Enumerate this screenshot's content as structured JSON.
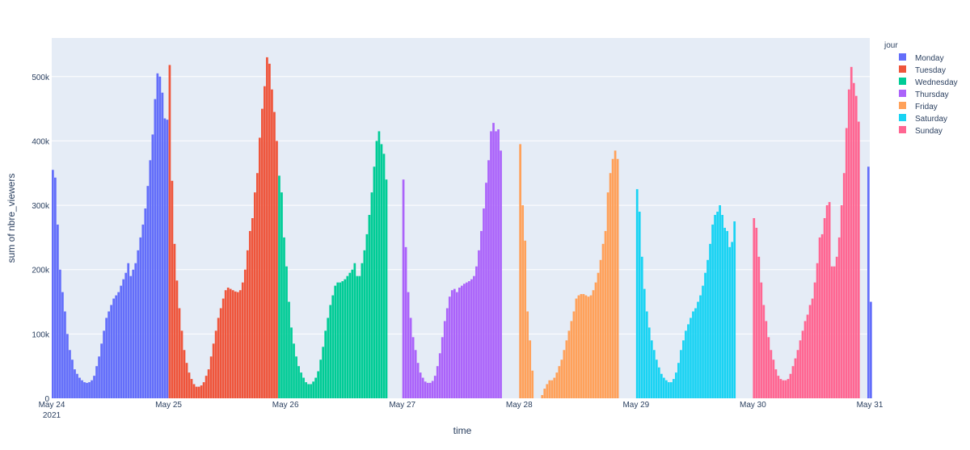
{
  "chart_data": {
    "type": "bar",
    "xlabel": "time",
    "ylabel": "sum of nbre_viewers",
    "ylim": [
      0,
      560000
    ],
    "xlim_hours": [
      0,
      168
    ],
    "x_ticks": [
      {
        "label": "May 24",
        "sub": "2021",
        "hour": 0
      },
      {
        "label": "May 25",
        "sub": "",
        "hour": 24
      },
      {
        "label": "May 26",
        "sub": "",
        "hour": 48
      },
      {
        "label": "May 27",
        "sub": "",
        "hour": 72
      },
      {
        "label": "May 28",
        "sub": "",
        "hour": 96
      },
      {
        "label": "May 29",
        "sub": "",
        "hour": 120
      },
      {
        "label": "May 30",
        "sub": "",
        "hour": 144
      },
      {
        "label": "May 31",
        "sub": "",
        "hour": 168
      }
    ],
    "y_ticks": [
      {
        "label": "0",
        "value": 0
      },
      {
        "label": "100k",
        "value": 100000
      },
      {
        "label": "200k",
        "value": 200000
      },
      {
        "label": "300k",
        "value": 300000
      },
      {
        "label": "400k",
        "value": 400000
      },
      {
        "label": "500k",
        "value": 500000
      }
    ],
    "bin_width_hours": 0.5,
    "legend": {
      "title": "jour",
      "placement": "right"
    },
    "grid": true,
    "series": [
      {
        "name": "Monday",
        "color": "#636efa",
        "start_hour": 0,
        "values": [
          355000,
          343000,
          270000,
          200000,
          165000,
          135000,
          100000,
          75000,
          60000,
          45000,
          38000,
          32000,
          28000,
          25000,
          24000,
          25000,
          28000,
          35000,
          50000,
          65000,
          85000,
          105000,
          125000,
          135000,
          145000,
          155000,
          160000,
          165000,
          175000,
          185000,
          195000,
          210000,
          190000,
          200000,
          210000,
          230000,
          250000,
          270000,
          295000,
          330000,
          370000,
          410000,
          465000,
          505000,
          500000,
          475000,
          435000,
          433000
        ]
      },
      {
        "name": "Tuesday",
        "color": "#ef553b",
        "start_hour": 24,
        "values": [
          518000,
          338000,
          240000,
          183000,
          140000,
          105000,
          75000,
          55000,
          40000,
          30000,
          22000,
          18000,
          18000,
          20000,
          25000,
          35000,
          45000,
          65000,
          85000,
          105000,
          125000,
          140000,
          155000,
          168000,
          172000,
          170000,
          168000,
          166000,
          165000,
          168000,
          180000,
          200000,
          230000,
          260000,
          280000,
          320000,
          350000,
          405000,
          450000,
          485000,
          530000,
          520000,
          480000,
          445000,
          400000
        ]
      },
      {
        "name": "Wednesday",
        "color": "#00cc96",
        "start_hour": 46.5,
        "values": [
          346000,
          320000,
          250000,
          205000,
          150000,
          110000,
          85000,
          65000,
          50000,
          40000,
          32000,
          25000,
          22000,
          22000,
          26000,
          32000,
          42000,
          60000,
          80000,
          105000,
          125000,
          145000,
          160000,
          175000,
          180000,
          180000,
          182000,
          185000,
          190000,
          195000,
          200000,
          210000,
          190000,
          190000,
          210000,
          230000,
          255000,
          285000,
          320000,
          360000,
          400000,
          415000,
          395000,
          380000,
          340000
        ]
      },
      {
        "name": "Thursday",
        "color": "#ab63fa",
        "start_hour": 72,
        "values": [
          340000,
          235000,
          165000,
          125000,
          95000,
          75000,
          55000,
          40000,
          32000,
          26000,
          24000,
          24000,
          27000,
          35000,
          50000,
          70000,
          95000,
          120000,
          140000,
          158000,
          168000,
          170000,
          165000,
          172000,
          175000,
          178000,
          180000,
          182000,
          185000,
          190000,
          205000,
          230000,
          260000,
          295000,
          335000,
          370000,
          415000,
          428000,
          415000,
          418000,
          385000
        ]
      },
      {
        "name": "Friday",
        "color": "#ffa15a",
        "start_hour": 96,
        "values": [
          395000,
          300000,
          245000,
          135000,
          90000,
          43000,
          0,
          0,
          0,
          5000,
          15000,
          22000,
          28000,
          28000,
          32000,
          40000,
          50000,
          60000,
          75000,
          90000,
          105000,
          120000,
          135000,
          155000,
          160000,
          162000,
          162000,
          160000,
          158000,
          160000,
          168000,
          180000,
          195000,
          215000,
          240000,
          260000,
          320000,
          350000,
          372000,
          385000,
          372000
        ]
      },
      {
        "name": "Saturday",
        "color": "#19d3f3",
        "start_hour": 120,
        "values": [
          325000,
          290000,
          220000,
          170000,
          135000,
          110000,
          90000,
          75000,
          60000,
          48000,
          38000,
          32000,
          28000,
          25000,
          25000,
          30000,
          40000,
          55000,
          75000,
          90000,
          105000,
          115000,
          125000,
          135000,
          140000,
          150000,
          160000,
          175000,
          195000,
          215000,
          240000,
          270000,
          285000,
          290000,
          300000,
          285000,
          265000,
          260000,
          235000,
          243000,
          275000
        ]
      },
      {
        "name": "Sunday",
        "color": "#ff6692",
        "start_hour": 144,
        "values": [
          280000,
          265000,
          220000,
          180000,
          145000,
          120000,
          95000,
          75000,
          60000,
          45000,
          35000,
          30000,
          28000,
          28000,
          30000,
          38000,
          50000,
          62000,
          75000,
          90000,
          105000,
          120000,
          130000,
          145000,
          155000,
          180000,
          210000,
          250000,
          255000,
          280000,
          300000,
          305000,
          205000,
          205000,
          220000,
          250000,
          300000,
          350000,
          420000,
          480000,
          515000,
          490000,
          470000,
          430000
        ]
      },
      {
        "name": "Monday",
        "color": "#636efa",
        "start_hour": 167.5,
        "values": [
          360000,
          150000
        ],
        "legend": false
      }
    ]
  }
}
